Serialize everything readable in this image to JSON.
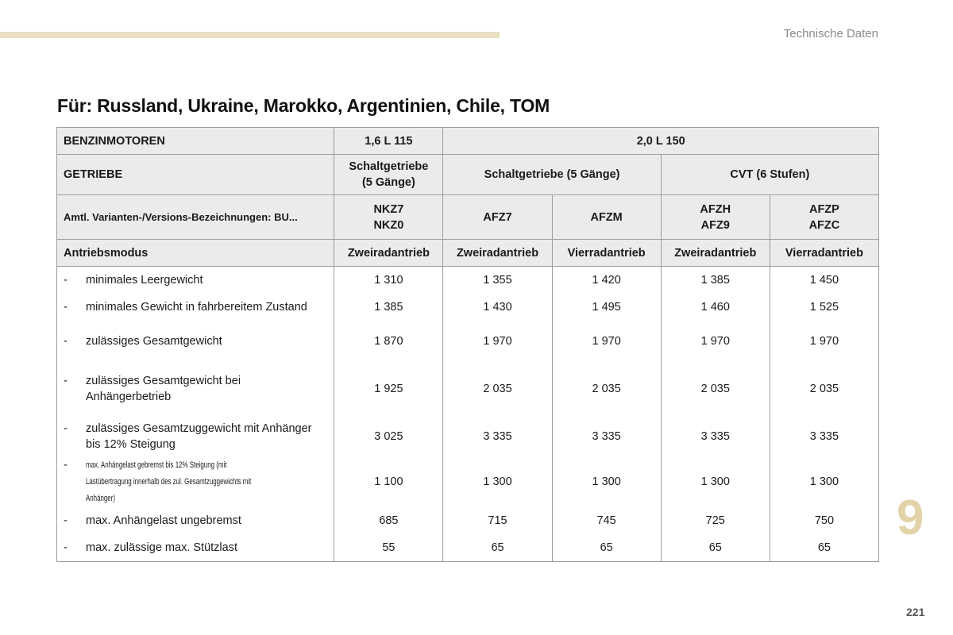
{
  "header": {
    "section_label": "Technische Daten"
  },
  "title": "Für: Russland, Ukraine, Marokko, Argentinien, Chile, TOM",
  "table": {
    "engine_row": {
      "label": "BENZINMOTOREN",
      "groups": [
        "1,6 L 115",
        "2,0 L 150"
      ]
    },
    "gearbox_row": {
      "label": "GETRIEBE",
      "groups": [
        "Schaltgetriebe\n(5 Gänge)",
        "Schaltgetriebe (5 Gänge)",
        "CVT (6 Stufen)"
      ]
    },
    "variant_row": {
      "label": "Amtl. Varianten-/Versions-Bezeichnungen: BU...",
      "values": [
        "NKZ7\nNKZ0",
        "AFZ7",
        "AFZM",
        "AFZH\nAFZ9",
        "AFZP\nAFZC"
      ]
    },
    "drive_row": {
      "label": "Antriebsmodus",
      "values": [
        "Zweiradantrieb",
        "Zweiradantrieb",
        "Vierradantrieb",
        "Zweiradantrieb",
        "Vierradantrieb"
      ]
    },
    "rows": [
      {
        "dash": "-",
        "label": "minimales Leergewicht",
        "values": [
          "1 310",
          "1 355",
          "1 420",
          "1 385",
          "1 450"
        ]
      },
      {
        "dash": "-",
        "label": "minimales Gewicht in fahrbereitem Zustand",
        "values": [
          "1 385",
          "1 430",
          "1 495",
          "1 460",
          "1 525"
        ]
      },
      {
        "dash": "-",
        "label": "zulässiges Gesamtgewicht",
        "values": [
          "1 870",
          "1 970",
          "1 970",
          "1 970",
          "1 970"
        ]
      },
      {
        "dash": "-",
        "label": "zulässiges Gesamtgewicht bei Anhängerbetrieb",
        "values": [
          "1 925",
          "2 035",
          "2 035",
          "2 035",
          "2 035"
        ]
      },
      {
        "dash": "-",
        "label": "zulässiges Gesamtzuggewicht mit Anhänger bis 12% Steigung",
        "values": [
          "3 025",
          "3 335",
          "3 335",
          "3 335",
          "3 335"
        ]
      },
      {
        "dash": "-",
        "label": "max. Anhängelast gebremst bis 12% Steigung (mit Lastübertragung innerhalb des zul. Gesamtzuggewichts mit Anhänger)",
        "values": [
          "1 100",
          "1 300",
          "1 300",
          "1 300",
          "1 300"
        ]
      },
      {
        "dash": "-",
        "label": "max. Anhängelast ungebremst",
        "values": [
          "685",
          "715",
          "745",
          "725",
          "750"
        ]
      },
      {
        "dash": "-",
        "label": "max. zulässige max. Stützlast",
        "values": [
          "55",
          "65",
          "65",
          "65",
          "65"
        ]
      }
    ]
  },
  "chapter_number": "9",
  "page_number": "221",
  "colors": {
    "accent": "#e9dfc2",
    "chapter_number": "#e3d3a8",
    "header_bg": "#ebebeb",
    "border": "#9d9d9d"
  }
}
